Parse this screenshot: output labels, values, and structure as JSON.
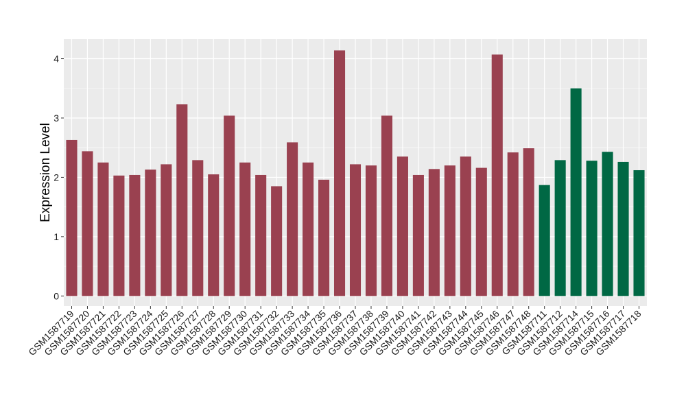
{
  "chart_data": {
    "type": "bar",
    "ylabel": "Expression Level",
    "xlabel": "",
    "ylim": [
      -0.17,
      4.33
    ],
    "yticks": [
      0,
      1,
      2,
      3,
      4
    ],
    "grid": true,
    "colors": {
      "group_a": "#9A4150",
      "group_b": "#006844",
      "panel": "#EBEBEB",
      "grid": "#FFFFFF"
    },
    "categories": [
      "GSM1587719",
      "GSM1587720",
      "GSM1587721",
      "GSM1587722",
      "GSM1587723",
      "GSM1587724",
      "GSM1587725",
      "GSM1587726",
      "GSM1587727",
      "GSM1587728",
      "GSM1587729",
      "GSM1587730",
      "GSM1587731",
      "GSM1587732",
      "GSM1587733",
      "GSM1587734",
      "GSM1587735",
      "GSM1587736",
      "GSM1587737",
      "GSM1587738",
      "GSM1587739",
      "GSM1587740",
      "GSM1587741",
      "GSM1587742",
      "GSM1587743",
      "GSM1587744",
      "GSM1587745",
      "GSM1587746",
      "GSM1587747",
      "GSM1587748",
      "GSM1587711",
      "GSM1587712",
      "GSM1587714",
      "GSM1587715",
      "GSM1587716",
      "GSM1587717",
      "GSM1587718"
    ],
    "values": [
      2.63,
      2.44,
      2.25,
      2.03,
      2.04,
      2.13,
      2.22,
      3.23,
      2.29,
      2.05,
      3.04,
      2.25,
      2.04,
      1.85,
      2.59,
      2.25,
      1.96,
      4.14,
      2.22,
      2.2,
      3.04,
      2.35,
      2.04,
      2.14,
      2.2,
      2.35,
      2.16,
      4.07,
      2.42,
      2.49,
      1.87,
      2.29,
      3.5,
      2.28,
      2.43,
      2.26,
      2.12
    ],
    "groups": [
      "a",
      "a",
      "a",
      "a",
      "a",
      "a",
      "a",
      "a",
      "a",
      "a",
      "a",
      "a",
      "a",
      "a",
      "a",
      "a",
      "a",
      "a",
      "a",
      "a",
      "a",
      "a",
      "a",
      "a",
      "a",
      "a",
      "a",
      "a",
      "a",
      "a",
      "b",
      "b",
      "b",
      "b",
      "b",
      "b",
      "b"
    ]
  }
}
